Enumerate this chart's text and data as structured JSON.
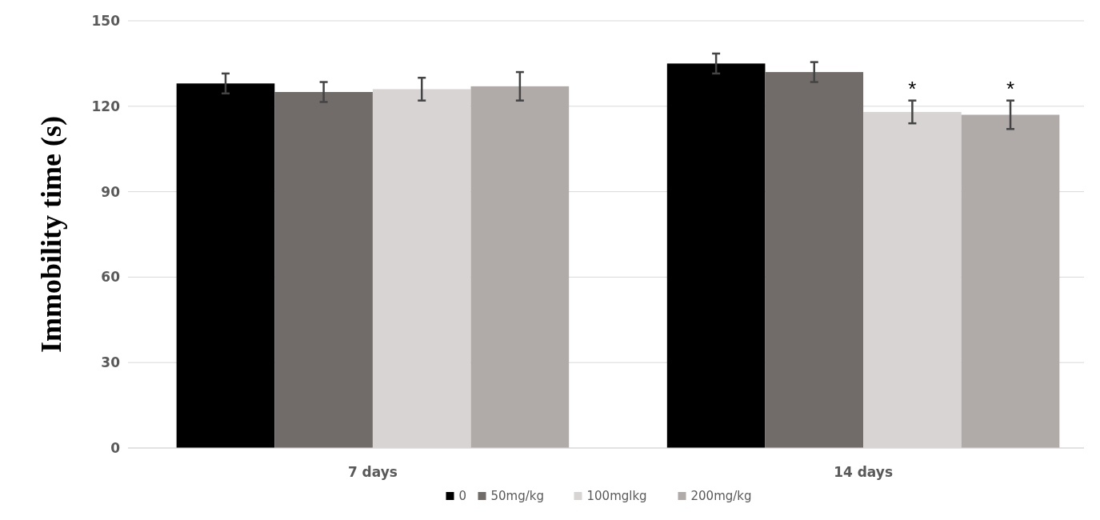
{
  "chart_data": {
    "type": "bar",
    "ylabel": "Immobility time (s)",
    "categories": [
      "7 days",
      "14 days"
    ],
    "series": [
      {
        "name": "0",
        "color": "#000000",
        "values": [
          128,
          135
        ],
        "errors": [
          3.5,
          3.5
        ]
      },
      {
        "name": "50mg/kg",
        "color": "#716b69",
        "values": [
          125,
          132
        ],
        "errors": [
          3.5,
          3.5
        ]
      },
      {
        "name": "100mglkg",
        "color": "#d9d4d4",
        "values": [
          126,
          118
        ],
        "errors": [
          4,
          4
        ],
        "value_labels": [
          null,
          "*"
        ]
      },
      {
        "name": "200mg/kg",
        "color": "#b0aaa8",
        "values": [
          127,
          117
        ],
        "errors": [
          5,
          5
        ],
        "value_labels": [
          null,
          "*"
        ]
      }
    ],
    "ylim": [
      0,
      150
    ],
    "yticks": [
      0,
      30,
      60,
      90,
      120,
      150
    ],
    "grid": "y",
    "legend": "bottom"
  }
}
